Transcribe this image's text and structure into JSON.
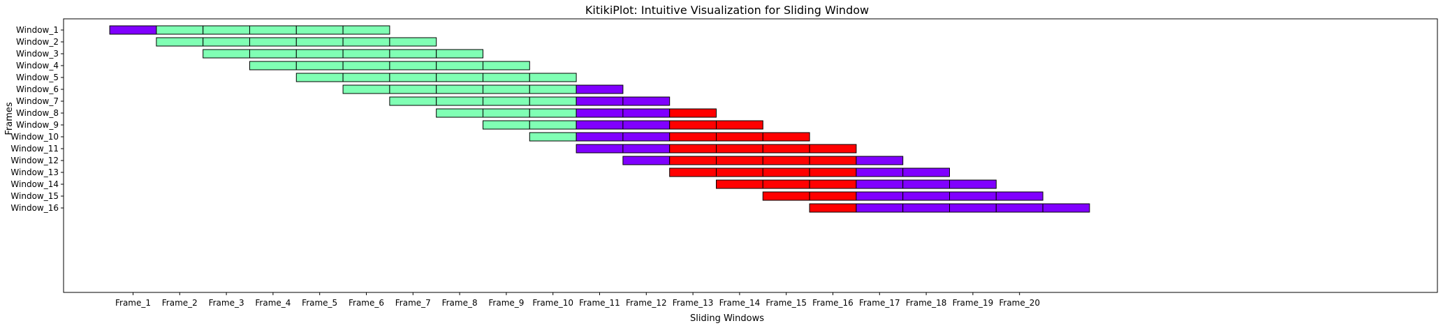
{
  "chart_data": {
    "type": "bar",
    "title": "KitikiPlot: Intuitive Visualization for Sliding Window",
    "xlabel": "Sliding Windows",
    "ylabel": "Frames",
    "x_ticks": [
      "Frame_1",
      "Frame_2",
      "Frame_3",
      "Frame_4",
      "Frame_5",
      "Frame_6",
      "Frame_7",
      "Frame_8",
      "Frame_9",
      "Frame_10",
      "Frame_11",
      "Frame_12",
      "Frame_13",
      "Frame_14",
      "Frame_15",
      "Frame_16",
      "Frame_17",
      "Frame_18",
      "Frame_19",
      "Frame_20"
    ],
    "windows": [
      "Window_1",
      "Window_2",
      "Window_3",
      "Window_4",
      "Window_5",
      "Window_6",
      "Window_7",
      "Window_8",
      "Window_9",
      "Window_10",
      "Window_11",
      "Window_12",
      "Window_13",
      "Window_14",
      "Window_15",
      "Window_16"
    ],
    "categories": {
      "A": "#8000ff",
      "B": "#80ffb4",
      "C": "#ff0000"
    },
    "rows": [
      [
        "A",
        "B",
        "B",
        "B",
        "B",
        "B"
      ],
      [
        "B",
        "B",
        "B",
        "B",
        "B",
        "B"
      ],
      [
        "B",
        "B",
        "B",
        "B",
        "B",
        "B"
      ],
      [
        "B",
        "B",
        "B",
        "B",
        "B",
        "B"
      ],
      [
        "B",
        "B",
        "B",
        "B",
        "B",
        "B"
      ],
      [
        "B",
        "B",
        "B",
        "B",
        "B",
        "A"
      ],
      [
        "B",
        "B",
        "B",
        "B",
        "A",
        "A"
      ],
      [
        "B",
        "B",
        "B",
        "A",
        "A",
        "C"
      ],
      [
        "B",
        "B",
        "A",
        "A",
        "C",
        "C"
      ],
      [
        "B",
        "A",
        "A",
        "C",
        "C",
        "C"
      ],
      [
        "A",
        "A",
        "C",
        "C",
        "C",
        "C"
      ],
      [
        "A",
        "C",
        "C",
        "C",
        "C",
        "A"
      ],
      [
        "C",
        "C",
        "C",
        "C",
        "A",
        "A"
      ],
      [
        "C",
        "C",
        "C",
        "A",
        "A",
        "A"
      ],
      [
        "C",
        "C",
        "A",
        "A",
        "A",
        "A"
      ],
      [
        "C",
        "A",
        "A",
        "A",
        "A",
        "A"
      ]
    ],
    "grid": false,
    "legend": "none"
  }
}
